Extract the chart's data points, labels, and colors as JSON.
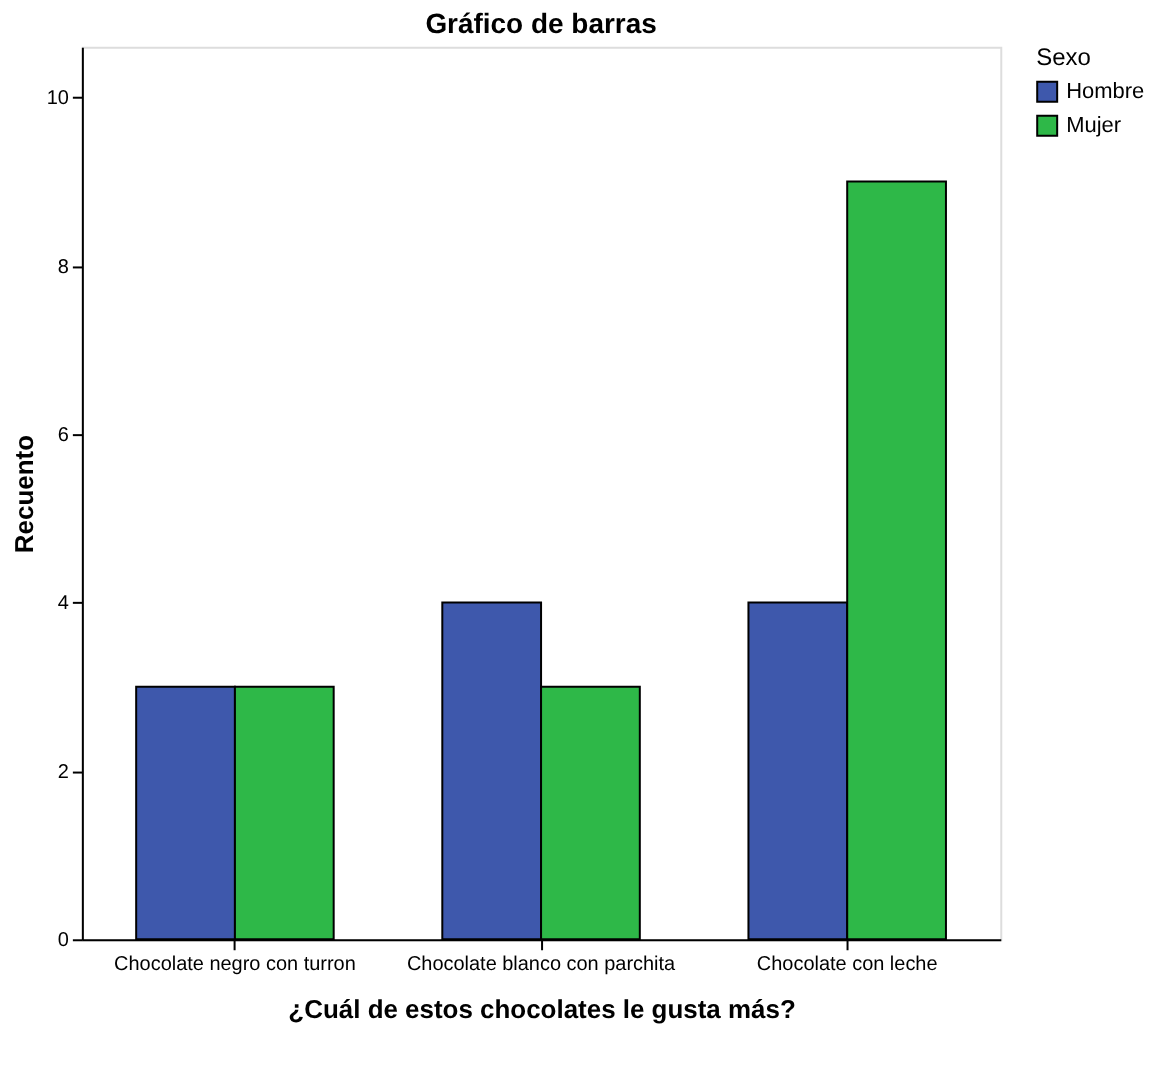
{
  "chart_data": {
    "type": "bar",
    "title": "Gráfico de barras",
    "xlabel": "¿Cuál de estos chocolates le gusta más?",
    "ylabel": "Recuento",
    "legend_title": "Sexo",
    "categories": [
      "Chocolate negro con turron",
      "Chocolate blanco con parchita",
      "Chocolate con leche"
    ],
    "series": [
      {
        "name": "Hombre",
        "color": "#3e58ac",
        "values": [
          3,
          4,
          4
        ]
      },
      {
        "name": "Mujer",
        "color": "#2eb848",
        "values": [
          3,
          3,
          9
        ]
      }
    ],
    "ylim": [
      0,
      10.6
    ],
    "yticks": [
      0,
      2,
      4,
      6,
      8,
      10
    ],
    "grid": false,
    "legend": "top right"
  }
}
